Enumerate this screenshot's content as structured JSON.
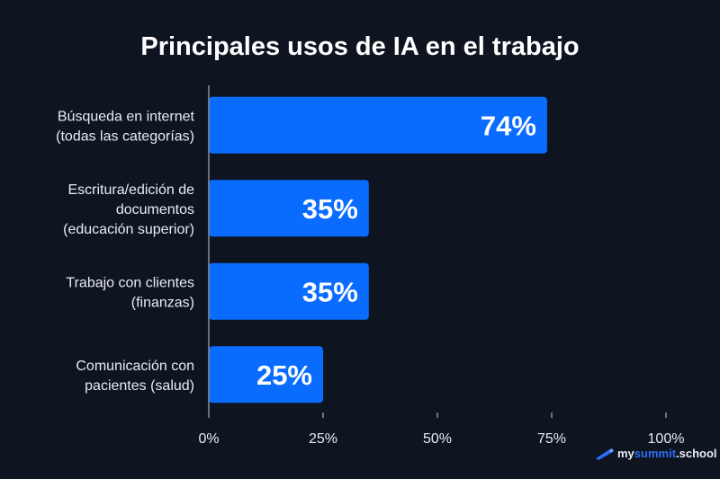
{
  "chart_data": {
    "type": "bar",
    "orientation": "horizontal",
    "title": "Principales usos de IA en el trabajo",
    "categories": [
      [
        "Búsqueda en internet",
        "(todas las categorías)"
      ],
      [
        "Escritura/edición de",
        "documentos",
        "(educación superior)"
      ],
      [
        "Trabajo con clientes",
        "(finanzas)"
      ],
      [
        "Comunicación con",
        "pacientes (salud)"
      ]
    ],
    "values": [
      74,
      35,
      35,
      25
    ],
    "data_labels": [
      "74%",
      "35%",
      "35%",
      "25%"
    ],
    "xlim": [
      0,
      100
    ],
    "xticks": [
      0,
      25,
      50,
      75,
      100
    ],
    "xtick_labels": [
      "0%",
      "25%",
      "50%",
      "75%",
      "100%"
    ],
    "grid": false,
    "colors": {
      "bar": "#0a6cff",
      "background": "#0e1420",
      "text": "#e8ecf2"
    }
  },
  "branding": {
    "part1": "my",
    "part2": "summit",
    "part3": ".school",
    "icon": "telescope-icon"
  }
}
